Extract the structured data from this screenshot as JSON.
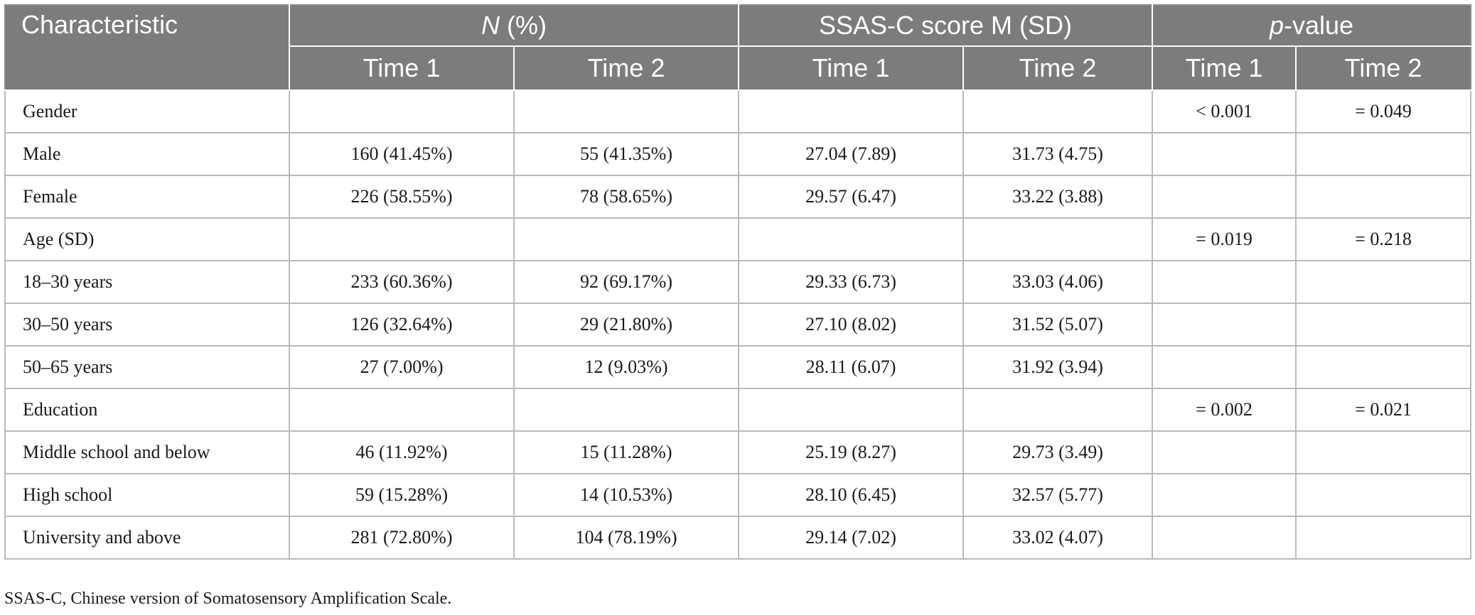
{
  "table": {
    "header": {
      "characteristic": "Characteristic",
      "n_pct_label_italic": "N",
      "n_pct_label_rest": " (%)",
      "score_label": "SSAS-C score M (SD)",
      "p_label_italic": "p",
      "p_label_rest": "-value",
      "time1": "Time 1",
      "time2": "Time 2"
    },
    "rows": [
      {
        "label": "Gender",
        "n1": "",
        "n2": "",
        "s1": "",
        "s2": "",
        "p1": "< 0.001",
        "p2": "= 0.049"
      },
      {
        "label": "Male",
        "n1": "160 (41.45%)",
        "n2": "55 (41.35%)",
        "s1": "27.04 (7.89)",
        "s2": "31.73 (4.75)",
        "p1": "",
        "p2": ""
      },
      {
        "label": "Female",
        "n1": "226 (58.55%)",
        "n2": "78 (58.65%)",
        "s1": "29.57 (6.47)",
        "s2": "33.22 (3.88)",
        "p1": "",
        "p2": ""
      },
      {
        "label": "Age (SD)",
        "n1": "",
        "n2": "",
        "s1": "",
        "s2": "",
        "p1": "= 0.019",
        "p2": "= 0.218"
      },
      {
        "label": "18–30 years",
        "n1": "233 (60.36%)",
        "n2": "92 (69.17%)",
        "s1": "29.33 (6.73)",
        "s2": "33.03 (4.06)",
        "p1": "",
        "p2": ""
      },
      {
        "label": "30–50 years",
        "n1": "126 (32.64%)",
        "n2": "29 (21.80%)",
        "s1": "27.10 (8.02)",
        "s2": "31.52 (5.07)",
        "p1": "",
        "p2": ""
      },
      {
        "label": "50–65 years",
        "n1": "27 (7.00%)",
        "n2": "12 (9.03%)",
        "s1": "28.11 (6.07)",
        "s2": "31.92 (3.94)",
        "p1": "",
        "p2": ""
      },
      {
        "label": "Education",
        "n1": "",
        "n2": "",
        "s1": "",
        "s2": "",
        "p1": "= 0.002",
        "p2": "= 0.021"
      },
      {
        "label": "Middle school and below",
        "n1": "46 (11.92%)",
        "n2": "15 (11.28%)",
        "s1": "25.19 (8.27)",
        "s2": "29.73 (3.49)",
        "p1": "",
        "p2": ""
      },
      {
        "label": "High school",
        "n1": "59 (15.28%)",
        "n2": "14 (10.53%)",
        "s1": "28.10 (6.45)",
        "s2": "32.57 (5.77)",
        "p1": "",
        "p2": ""
      },
      {
        "label": "University and above",
        "n1": "281 (72.80%)",
        "n2": "104 (78.19%)",
        "s1": "29.14 (7.02)",
        "s2": "33.02 (4.07)",
        "p1": "",
        "p2": ""
      }
    ]
  },
  "footnote": "SSAS-C, Chinese version of Somatosensory Amplification Scale."
}
